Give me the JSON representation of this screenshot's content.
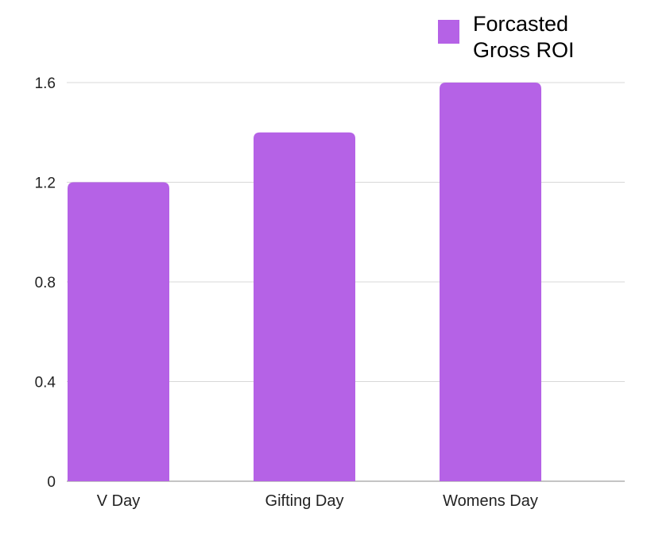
{
  "chart_data": {
    "type": "bar",
    "categories": [
      "V Day",
      "Gifting Day",
      "Womens Day"
    ],
    "series": [
      {
        "name": "Forcasted Gross ROI",
        "values": [
          1.2,
          1.4,
          1.6
        ]
      }
    ],
    "yticks": [
      "0",
      "0.4",
      "0.8",
      "1.2",
      "1.6"
    ],
    "ylim": [
      0,
      1.6
    ],
    "grid": true,
    "legend_position": "top-right",
    "bar_color": "#b562e6",
    "grid_color": "#d8d8d8",
    "axis_color": "#b0b0b0"
  }
}
